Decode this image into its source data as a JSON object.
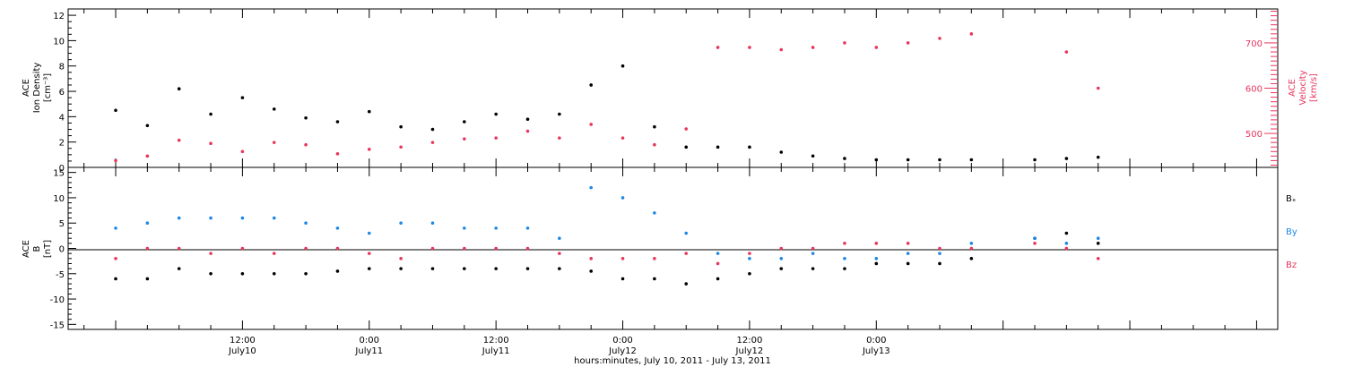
{
  "chart_data": [
    {
      "panel": "top",
      "type": "scatter",
      "ylabel_left": [
        "ACE",
        "Ion Density",
        "[cm⁻³]"
      ],
      "ylabel_right": [
        "ACE",
        "Velocity",
        "[km/s]"
      ],
      "ylim_left": [
        0,
        12.5
      ],
      "yticks_left": [
        "0",
        "2",
        "4",
        "6",
        "8",
        "10",
        "12"
      ],
      "ylim_right": [
        425,
        775
      ],
      "yticks_right": [
        "500",
        "600",
        "700"
      ],
      "series": [
        {
          "axis": "left",
          "color": "#000000",
          "x_hours": [
            0,
            3,
            6,
            9,
            12,
            15,
            18,
            21,
            24,
            27,
            30,
            33,
            36,
            39,
            42,
            45,
            48,
            51,
            54,
            57,
            60,
            63,
            66,
            69,
            72,
            75,
            78,
            81,
            84,
            87,
            90,
            93
          ],
          "values": [
            4.5,
            3.3,
            6.2,
            4.2,
            5.5,
            4.6,
            3.9,
            3.6,
            4.4,
            3.2,
            3.0,
            3.6,
            4.2,
            3.8,
            4.2,
            6.5,
            8.0,
            3.2,
            1.6,
            1.6,
            1.6,
            1.2,
            0.9,
            0.7,
            0.6,
            0.6,
            0.6,
            0.6,
            null,
            0.6,
            0.7,
            0.8
          ]
        },
        {
          "axis": "right",
          "color": "#e8365d",
          "x_hours": [
            0,
            3,
            6,
            9,
            12,
            15,
            18,
            21,
            24,
            27,
            30,
            33,
            36,
            39,
            42,
            45,
            48,
            51,
            54,
            57,
            60,
            63,
            66,
            69,
            72,
            75,
            78,
            81,
            84,
            87,
            90,
            93
          ],
          "values": [
            440,
            450,
            485,
            478,
            460,
            480,
            475,
            455,
            465,
            470,
            480,
            488,
            490,
            505,
            490,
            520,
            490,
            475,
            510,
            690,
            690,
            685,
            690,
            700,
            690,
            700,
            710,
            720,
            null,
            null,
            680,
            600
          ]
        }
      ]
    },
    {
      "panel": "bottom",
      "type": "scatter",
      "ylabel": [
        "ACE",
        "B",
        "[nT]"
      ],
      "ylim": [
        -16,
        16
      ],
      "yticks": [
        "-15",
        "-10",
        "-5",
        "0",
        "5",
        "10",
        "15"
      ],
      "legend_labels": [
        "Bₓ",
        "By",
        "Bz"
      ],
      "legend_colors": [
        "#000000",
        "#1e88e5",
        "#e8365d"
      ],
      "series": [
        {
          "name": "Bₓ",
          "color": "#000000",
          "x_hours": [
            0,
            3,
            6,
            9,
            12,
            15,
            18,
            21,
            24,
            27,
            30,
            33,
            36,
            39,
            42,
            45,
            48,
            51,
            54,
            57,
            60,
            63,
            66,
            69,
            72,
            75,
            78,
            81,
            84,
            87,
            90,
            93
          ],
          "values": [
            -6,
            -6,
            -4,
            -5,
            -5,
            -5,
            -5,
            -4.5,
            -4,
            -4,
            -4,
            -4,
            -4,
            -4,
            -4,
            -4.5,
            -6,
            -6,
            -7,
            -6,
            -5,
            -4,
            -4,
            -4,
            -3,
            -3,
            -3,
            -2,
            null,
            2,
            3,
            1
          ]
        },
        {
          "name": "By",
          "color": "#1e88e5",
          "x_hours": [
            0,
            3,
            6,
            9,
            12,
            15,
            18,
            21,
            24,
            27,
            30,
            33,
            36,
            39,
            42,
            45,
            48,
            51,
            54,
            57,
            60,
            63,
            66,
            69,
            72,
            75,
            78,
            81,
            84,
            87,
            90,
            93
          ],
          "values": [
            4,
            5,
            6,
            6,
            6,
            6,
            5,
            4,
            3,
            5,
            5,
            4,
            4,
            4,
            2,
            12,
            10,
            7,
            3,
            -1,
            -2,
            -2,
            -1,
            -2,
            -2,
            -1,
            -1,
            1,
            null,
            2,
            1,
            2
          ]
        },
        {
          "name": "Bz",
          "color": "#e8365d",
          "x_hours": [
            0,
            3,
            6,
            9,
            12,
            15,
            18,
            21,
            24,
            27,
            30,
            33,
            36,
            39,
            42,
            45,
            48,
            51,
            54,
            57,
            60,
            63,
            66,
            69,
            72,
            75,
            78,
            81,
            84,
            87,
            90,
            93
          ],
          "values": [
            -2,
            0,
            0,
            -1,
            0,
            -1,
            0,
            0,
            -1,
            -2,
            0,
            0,
            0,
            0,
            -1,
            -2,
            -2,
            -2,
            -1,
            -3,
            -1,
            0,
            0,
            1,
            1,
            1,
            0,
            0,
            null,
            1,
            0,
            -2
          ]
        }
      ]
    }
  ],
  "x_axis": {
    "range_hours": [
      -4.5,
      110
    ],
    "ticks": [
      {
        "h": 12,
        "top": "12:00",
        "bottom": "July10"
      },
      {
        "h": 24,
        "top": "0:00",
        "bottom": "July11"
      },
      {
        "h": 36,
        "top": "12:00",
        "bottom": "July11"
      },
      {
        "h": 48,
        "top": "0:00",
        "bottom": "July12"
      },
      {
        "h": 60,
        "top": "12:00",
        "bottom": "July12"
      },
      {
        "h": 72,
        "top": "0:00",
        "bottom": "July13"
      }
    ],
    "xlabel": "hours:minutes, July 10, 2011 - July 13, 2011"
  }
}
